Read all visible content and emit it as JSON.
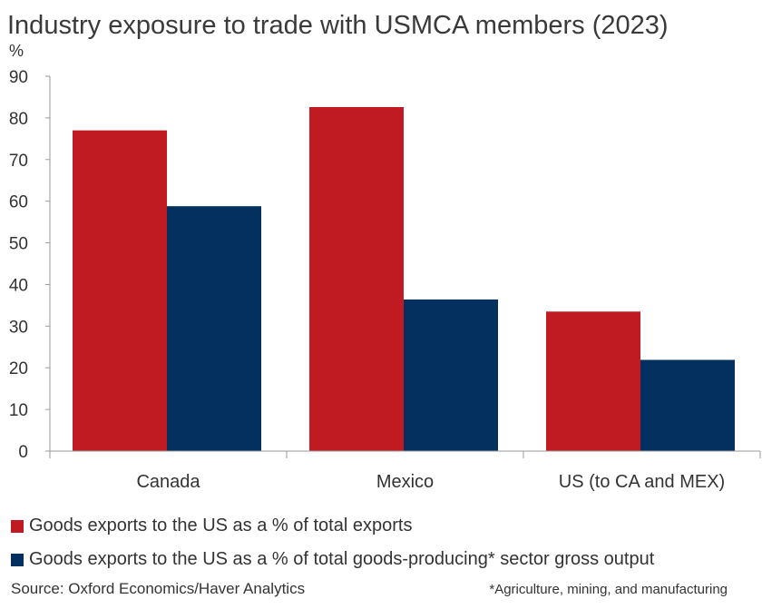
{
  "title": "Industry exposure to trade with USMCA members (2023)",
  "unit_label": "%",
  "colors": {
    "series1": "#c01a22",
    "series2": "#04305f",
    "axis": "#9a9a9a"
  },
  "legend": [
    {
      "label": "Goods exports to the US as a % of total exports"
    },
    {
      "label": "Goods exports to the US as a % of total goods-producing* sector gross output"
    }
  ],
  "source": "Source: Oxford Economics/Haver Analytics",
  "footnote": "*Agriculture, mining, and manufacturing",
  "chart_data": {
    "type": "bar",
    "categories": [
      "Canada",
      "Mexico",
      "US (to CA and MEX)"
    ],
    "series": [
      {
        "name": "Goods exports to the US as a % of total exports",
        "values": [
          77,
          82.6,
          33.5
        ]
      },
      {
        "name": "Goods exports to the US as a % of total goods-producing* sector gross output",
        "values": [
          58.8,
          36.4,
          21.9
        ]
      }
    ],
    "ylabel": "%",
    "ylim": [
      0,
      90
    ],
    "yticks": [
      0,
      10,
      20,
      30,
      40,
      50,
      60,
      70,
      80,
      90
    ],
    "grid": false,
    "legend_position": "bottom"
  }
}
